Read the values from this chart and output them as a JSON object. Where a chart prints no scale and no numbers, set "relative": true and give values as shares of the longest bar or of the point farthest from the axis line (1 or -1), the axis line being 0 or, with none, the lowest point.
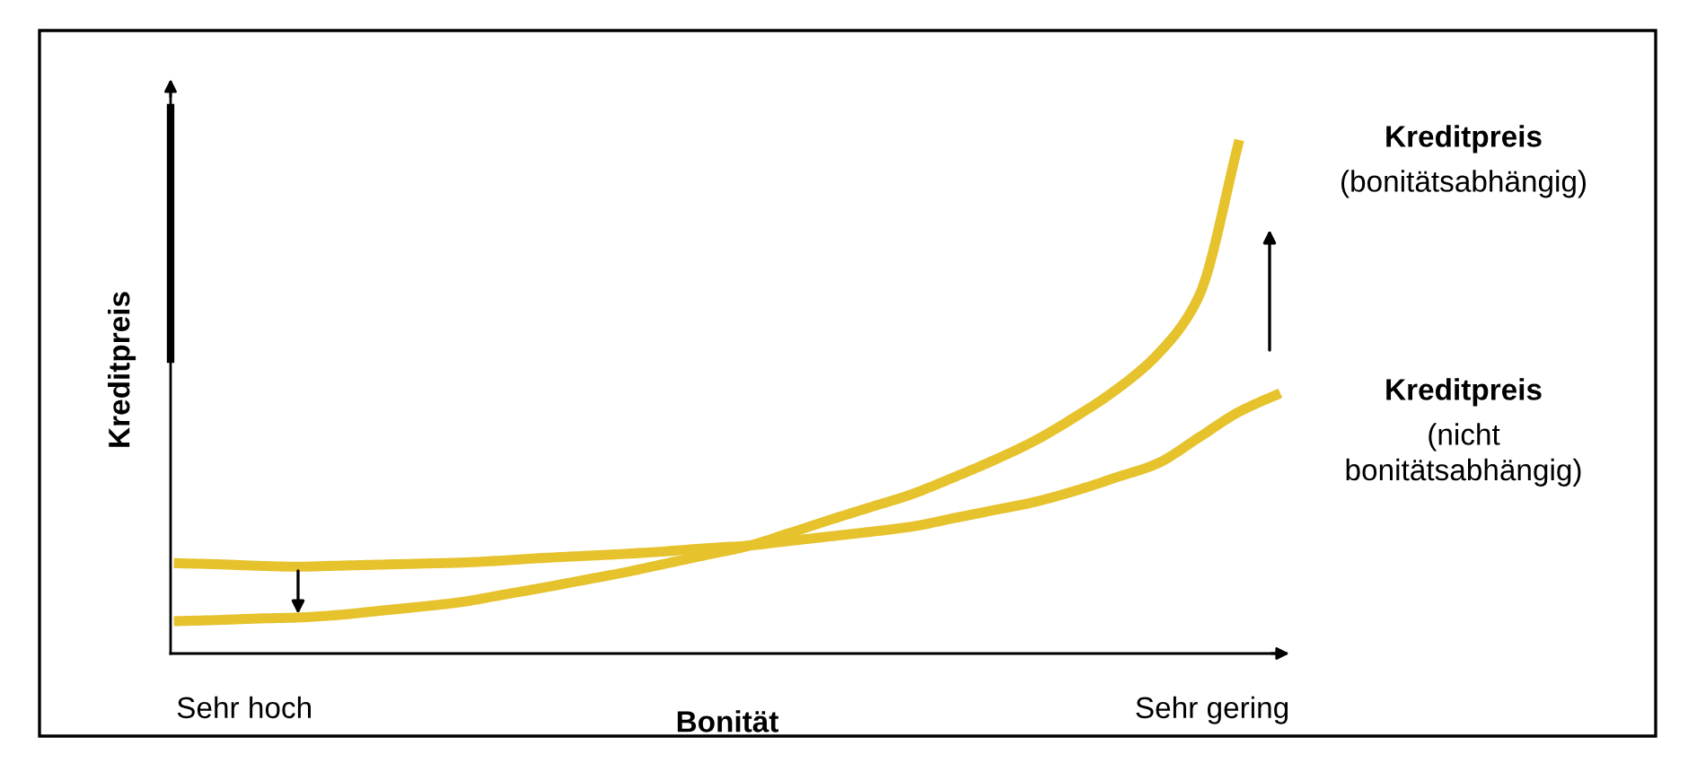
{
  "chart_data": {
    "type": "line",
    "relative": true,
    "xlabel": "Bonität",
    "ylabel": "Kreditpreis",
    "annotations": [
      "Sehr hoch",
      "Sehr gering"
    ],
    "legend": false,
    "grid": false,
    "marker": "none",
    "line_style": "solid",
    "categories": [
      null,
      null,
      null,
      null,
      null,
      null,
      null,
      null,
      null,
      null,
      null,
      null,
      null,
      null,
      null,
      null,
      null,
      null,
      null,
      null,
      null,
      null,
      null,
      null,
      null,
      null,
      null,
      null
    ],
    "series": [
      {
        "name": "Kreditpreis\n(bonitätsabhängig)",
        "color": "#e6c22c",
        "values": [
          0.063,
          0.065,
          0.068,
          0.07,
          0.075,
          0.083,
          0.091,
          0.1,
          0.114,
          0.128,
          0.143,
          0.158,
          0.175,
          0.192,
          0.209,
          0.234,
          0.26,
          0.285,
          0.31,
          0.342,
          0.376,
          0.414,
          0.461,
          0.514,
          0.582,
          0.693,
          1.0,
          null
        ]
      },
      {
        "name": "Kreditpreis\n(nicht\nbonitätsabhängig)",
        "color": "#e6c22c",
        "values": [
          0.176,
          0.174,
          0.171,
          0.169,
          0.171,
          0.173,
          0.175,
          0.177,
          0.181,
          0.186,
          0.19,
          0.194,
          0.199,
          0.205,
          0.21,
          0.219,
          0.228,
          0.237,
          0.247,
          0.263,
          0.279,
          0.295,
          0.317,
          0.343,
          0.37,
          0.42,
          0.471,
          0.507
        ]
      }
    ]
  }
}
